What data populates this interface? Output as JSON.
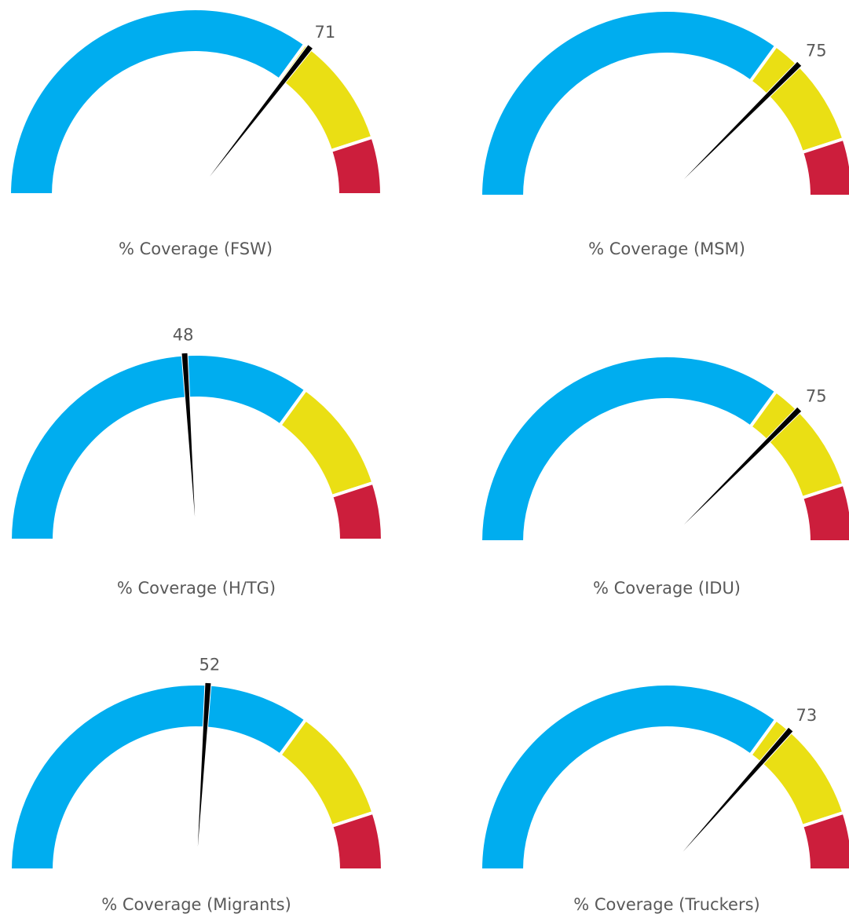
{
  "chart_data": [
    {
      "type": "gauge",
      "title": "% Coverage (FSW)",
      "value": 71,
      "ylim": [
        0,
        100
      ],
      "bands": [
        {
          "from": 0,
          "to": 70,
          "color": "#00adef"
        },
        {
          "from": 70,
          "to": 90,
          "color": "#eadf14"
        },
        {
          "from": 90,
          "to": 100,
          "color": "#cc1e3c"
        }
      ]
    },
    {
      "type": "gauge",
      "title": "% Coverage (MSM)",
      "value": 75,
      "ylim": [
        0,
        100
      ],
      "bands": [
        {
          "from": 0,
          "to": 70,
          "color": "#00adef"
        },
        {
          "from": 70,
          "to": 90,
          "color": "#eadf14"
        },
        {
          "from": 90,
          "to": 100,
          "color": "#cc1e3c"
        }
      ]
    },
    {
      "type": "gauge",
      "title": "% Coverage (H/TG)",
      "value": 48,
      "ylim": [
        0,
        100
      ],
      "bands": [
        {
          "from": 0,
          "to": 70,
          "color": "#00adef"
        },
        {
          "from": 70,
          "to": 90,
          "color": "#eadf14"
        },
        {
          "from": 90,
          "to": 100,
          "color": "#cc1e3c"
        }
      ]
    },
    {
      "type": "gauge",
      "title": "% Coverage (IDU)",
      "value": 75,
      "ylim": [
        0,
        100
      ],
      "bands": [
        {
          "from": 0,
          "to": 70,
          "color": "#00adef"
        },
        {
          "from": 70,
          "to": 90,
          "color": "#eadf14"
        },
        {
          "from": 90,
          "to": 100,
          "color": "#cc1e3c"
        }
      ]
    },
    {
      "type": "gauge",
      "title": "% Coverage (Migrants)",
      "value": 52,
      "ylim": [
        0,
        100
      ],
      "bands": [
        {
          "from": 0,
          "to": 70,
          "color": "#00adef"
        },
        {
          "from": 70,
          "to": 90,
          "color": "#eadf14"
        },
        {
          "from": 90,
          "to": 100,
          "color": "#cc1e3c"
        }
      ]
    },
    {
      "type": "gauge",
      "title": "% Coverage (Truckers)",
      "value": 73,
      "ylim": [
        0,
        100
      ],
      "bands": [
        {
          "from": 0,
          "to": 70,
          "color": "#00adef"
        },
        {
          "from": 70,
          "to": 90,
          "color": "#eadf14"
        },
        {
          "from": 90,
          "to": 100,
          "color": "#cc1e3c"
        }
      ]
    }
  ]
}
